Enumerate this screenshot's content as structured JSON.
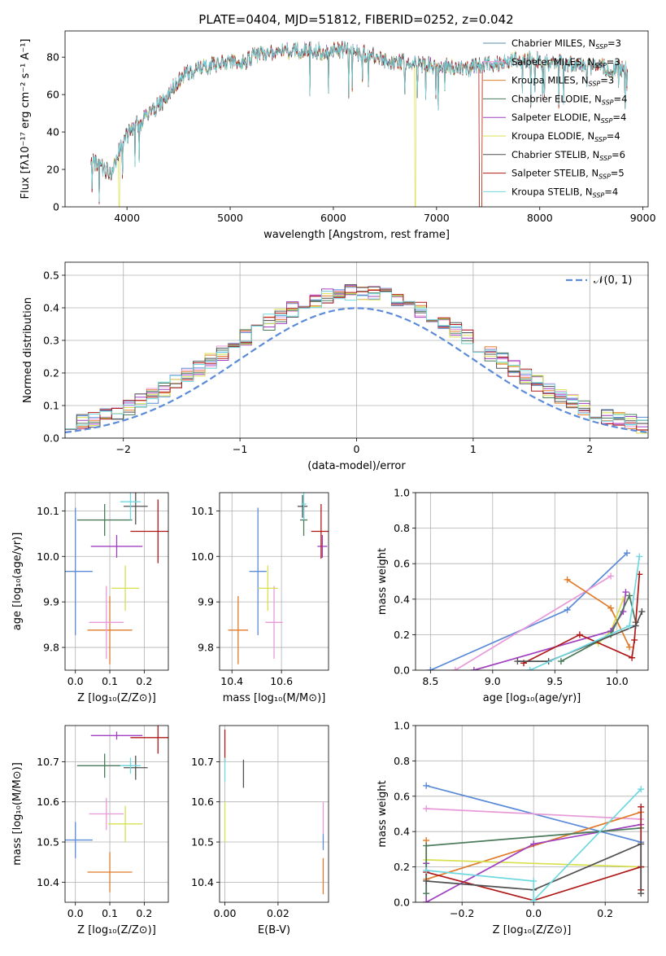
{
  "title": "PLATE=0404, MJD=51812, FIBERID=0252, z=0.042",
  "colors": {
    "Chabrier MILES": "#5a8fa6",
    "Salpeter MILES": "#e89ad8",
    "Kroupa MILES": "#e07b2a",
    "Chabrier ELODIE": "#4a7a5a",
    "Salpeter ELODIE": "#a040c0",
    "Kroupa ELODIE": "#d8e050",
    "Chabrier STELIB": "#505050",
    "Salpeter STELIB": "#b01818",
    "Kroupa STELIB": "#70d8e0",
    "normal": "#5b8bd9"
  },
  "chart_data": [
    {
      "type": "line",
      "panel": "spectrum",
      "xlabel": "wavelength [Angstrom, rest frame]",
      "ylabel": "Flux [fλ10⁻¹⁷ erg cm⁻² s⁻¹ A⁻¹]",
      "xlim": [
        3400,
        9050
      ],
      "ylim": [
        0,
        94
      ],
      "xticks": [
        4000,
        5000,
        6000,
        7000,
        8000,
        9000
      ],
      "yticks": [
        0,
        20,
        40,
        60,
        80
      ],
      "grid": false,
      "legend_position": "upper-right",
      "legend": [
        {
          "name": "Chabrier MILES",
          "label": "Chabrier MILES, N",
          "nssp": "=3"
        },
        {
          "name": "Salpeter MILES",
          "label": "Salpeter MILES, N",
          "nssp": "=3"
        },
        {
          "name": "Kroupa MILES",
          "label": "Kroupa MILES, N",
          "nssp": "=3"
        },
        {
          "name": "Chabrier ELODIE",
          "label": "Chabrier ELODIE, N",
          "nssp": "=4"
        },
        {
          "name": "Salpeter ELODIE",
          "label": "Salpeter ELODIE, N",
          "nssp": "=4"
        },
        {
          "name": "Kroupa ELODIE",
          "label": "Kroupa ELODIE, N",
          "nssp": "=4"
        },
        {
          "name": "Chabrier STELIB",
          "label": "Chabrier STELIB, N",
          "nssp": "=6"
        },
        {
          "name": "Salpeter STELIB",
          "label": "Salpeter STELIB, N",
          "nssp": "=5"
        },
        {
          "name": "Kroupa STELIB",
          "label": "Kroupa STELIB, N",
          "nssp": "=4"
        }
      ],
      "continuum_x": [
        3650,
        3750,
        3850,
        3950,
        4050,
        4150,
        4250,
        4350,
        4500,
        4650,
        4800,
        4950,
        5100,
        5300,
        5500,
        5700,
        5900,
        6100,
        6300,
        6500,
        6700,
        6900,
        7100,
        7300,
        7500,
        7700,
        7900,
        8100,
        8300,
        8500,
        8700,
        8850
      ],
      "continuum_y": [
        25,
        21,
        18,
        34,
        42,
        46,
        52,
        56,
        68,
        73,
        75,
        78,
        77,
        82,
        83,
        84,
        83,
        84,
        82,
        78,
        77,
        76,
        75,
        74,
        76,
        78,
        79,
        77,
        76,
        75,
        74,
        74
      ],
      "dips": [
        {
          "series": "Kroupa MILES",
          "x0": 7410,
          "x1": 7440,
          "y": 0
        },
        {
          "series": "Salpeter STELIB",
          "x0": 7410,
          "x1": 7440,
          "y": 0
        },
        {
          "series": "Kroupa ELODIE",
          "x0": 6790,
          "x1": 6800,
          "y": 0
        },
        {
          "series": "Kroupa ELODIE",
          "x0": 3920,
          "x1": 3930,
          "y": 0
        }
      ]
    },
    {
      "type": "step",
      "panel": "residual_histogram",
      "xlabel": "(data-model)/error",
      "ylabel": "Normed distribution",
      "xlim": [
        -2.5,
        2.5
      ],
      "ylim": [
        0,
        0.54
      ],
      "xticks": [
        -2,
        -1,
        0,
        1,
        2
      ],
      "yticks": [
        0.0,
        0.1,
        0.2,
        0.3,
        0.4,
        0.5
      ],
      "grid": true,
      "legend": "𝒩(0, 1)",
      "legend_position": "upper-right",
      "bin_width": 0.1,
      "normal_mu": 0,
      "normal_sigma": 1
    },
    {
      "type": "errorbar",
      "panel": "age_vs_Z",
      "xlabel": "Z [log₁₀(Z/Z⊙)]",
      "ylabel": "age  [log₁₀(age/yr)]",
      "xlim": [
        -0.03,
        0.27
      ],
      "ylim": [
        9.75,
        10.14
      ],
      "xticks": [
        0.0,
        0.1,
        0.2
      ],
      "yticks": [
        9.8,
        9.9,
        10.0,
        10.1
      ],
      "grid": true,
      "points": [
        {
          "name": "normal",
          "x": 0.0,
          "y": 9.967,
          "xerr": 0.05,
          "yerr": 0.14
        },
        {
          "name": "Kroupa MILES",
          "x": 0.1,
          "y": 9.838,
          "xerr": 0.065,
          "yerr": 0.075
        },
        {
          "name": "Salpeter MILES",
          "x": 0.09,
          "y": 9.855,
          "xerr": 0.05,
          "yerr": 0.08
        },
        {
          "name": "Kroupa ELODIE",
          "x": 0.145,
          "y": 9.93,
          "xerr": 0.04,
          "yerr": 0.05
        },
        {
          "name": "Salpeter ELODIE",
          "x": 0.12,
          "y": 10.022,
          "xerr": 0.075,
          "yerr": 0.025
        },
        {
          "name": "Chabrier ELODIE",
          "x": 0.085,
          "y": 10.08,
          "xerr": 0.08,
          "yerr": 0.035
        },
        {
          "name": "Salpeter STELIB",
          "x": 0.24,
          "y": 10.055,
          "xerr": 0.08,
          "yerr": 0.07
        },
        {
          "name": "Chabrier STELIB",
          "x": 0.175,
          "y": 10.11,
          "xerr": 0.035,
          "yerr": 0.04
        },
        {
          "name": "Kroupa STELIB",
          "x": 0.16,
          "y": 10.12,
          "xerr": 0.03,
          "yerr": 0.04
        }
      ]
    },
    {
      "type": "errorbar",
      "panel": "age_vs_mass",
      "xlabel": "mass [log₁₀(M/M⊙)]",
      "ylabel": "",
      "xlim": [
        10.35,
        10.79
      ],
      "ylim": [
        9.75,
        10.14
      ],
      "xticks": [
        10.4,
        10.6
      ],
      "yticks": [
        9.8,
        9.9,
        10.0,
        10.1
      ],
      "grid": true,
      "points": [
        {
          "name": "normal",
          "x": 10.505,
          "y": 9.967,
          "xerr": 0.035,
          "yerr": 0.14
        },
        {
          "name": "Kroupa MILES",
          "x": 10.425,
          "y": 9.838,
          "xerr": 0.04,
          "yerr": 0.075
        },
        {
          "name": "Salpeter MILES",
          "x": 10.57,
          "y": 9.855,
          "xerr": 0.035,
          "yerr": 0.08
        },
        {
          "name": "Kroupa ELODIE",
          "x": 10.545,
          "y": 9.93,
          "xerr": 0.04,
          "yerr": 0.05
        },
        {
          "name": "Salpeter ELODIE",
          "x": 10.765,
          "y": 10.022,
          "xerr": 0.02,
          "yerr": 0.025
        },
        {
          "name": "Chabrier ELODIE",
          "x": 10.69,
          "y": 10.08,
          "xerr": 0.015,
          "yerr": 0.035
        },
        {
          "name": "Salpeter STELIB",
          "x": 10.76,
          "y": 10.055,
          "xerr": 0.04,
          "yerr": 0.06
        },
        {
          "name": "Chabrier STELIB",
          "x": 10.685,
          "y": 10.11,
          "xerr": 0.02,
          "yerr": 0.025
        },
        {
          "name": "Kroupa STELIB",
          "x": 10.69,
          "y": 10.115,
          "xerr": 0.01,
          "yerr": 0.035
        }
      ]
    },
    {
      "type": "line",
      "panel": "mass_weight_vs_age",
      "xlabel": "age  [log₁₀(age/yr)]",
      "ylabel": "mass weight",
      "xlim": [
        8.38,
        10.25
      ],
      "ylim": [
        0,
        1.0
      ],
      "xticks": [
        8.5,
        9.0,
        9.5,
        10.0
      ],
      "yticks": [
        0.0,
        0.2,
        0.4,
        0.6,
        0.8,
        1.0
      ],
      "grid": true,
      "series": [
        {
          "name": "normal",
          "x": [
            8.5,
            9.6,
            10.08
          ],
          "y": [
            0.0,
            0.34,
            0.66
          ]
        },
        {
          "name": "Salpeter MILES",
          "x": [
            8.7,
            9.95
          ],
          "y": [
            0.0,
            0.53
          ]
        },
        {
          "name": "Kroupa MILES",
          "x": [
            9.6,
            9.95,
            10.1
          ],
          "y": [
            0.51,
            0.35,
            0.13
          ]
        },
        {
          "name": "Kroupa ELODIE",
          "x": [
            9.85,
            9.95,
            10.05
          ],
          "y": [
            0.15,
            0.22,
            0.4
          ]
        },
        {
          "name": "Salpeter ELODIE",
          "x": [
            8.85,
            9.95,
            10.05,
            10.07
          ],
          "y": [
            0.0,
            0.22,
            0.33,
            0.44
          ]
        },
        {
          "name": "Chabrier ELODIE",
          "x": [
            9.55,
            9.95,
            10.1,
            10.15
          ],
          "y": [
            0.05,
            0.2,
            0.42,
            0.27
          ]
        },
        {
          "name": "Salpeter STELIB",
          "x": [
            9.25,
            9.7,
            10.12,
            10.14,
            10.18
          ],
          "y": [
            0.04,
            0.2,
            0.07,
            0.17,
            0.54
          ]
        },
        {
          "name": "Chabrier STELIB",
          "x": [
            9.2,
            9.45,
            10.15,
            10.2
          ],
          "y": [
            0.05,
            0.05,
            0.25,
            0.33
          ]
        },
        {
          "name": "Kroupa STELIB",
          "x": [
            9.3,
            10.1,
            10.18
          ],
          "y": [
            0.0,
            0.25,
            0.64
          ]
        }
      ]
    },
    {
      "type": "errorbar",
      "panel": "mass_vs_Z",
      "xlabel": "Z [log₁₀(Z/Z⊙)]",
      "ylabel": "mass [log₁₀(M/M⊙)]",
      "xlim": [
        -0.03,
        0.27
      ],
      "ylim": [
        10.35,
        10.79
      ],
      "xticks": [
        0.0,
        0.1,
        0.2
      ],
      "yticks": [
        10.4,
        10.5,
        10.6,
        10.7
      ],
      "grid": true,
      "points": [
        {
          "name": "normal",
          "x": 0.0,
          "y": 10.505,
          "xerr": 0.05,
          "yerr": 0.045
        },
        {
          "name": "Kroupa MILES",
          "x": 0.1,
          "y": 10.425,
          "xerr": 0.065,
          "yerr": 0.05
        },
        {
          "name": "Salpeter MILES",
          "x": 0.09,
          "y": 10.57,
          "xerr": 0.05,
          "yerr": 0.04
        },
        {
          "name": "Kroupa ELODIE",
          "x": 0.145,
          "y": 10.545,
          "xerr": 0.05,
          "yerr": 0.045
        },
        {
          "name": "Salpeter ELODIE",
          "x": 0.12,
          "y": 10.765,
          "xerr": 0.075,
          "yerr": 0.01
        },
        {
          "name": "Chabrier ELODIE",
          "x": 0.085,
          "y": 10.69,
          "xerr": 0.08,
          "yerr": 0.03
        },
        {
          "name": "Salpeter STELIB",
          "x": 0.24,
          "y": 10.76,
          "xerr": 0.08,
          "yerr": 0.04
        },
        {
          "name": "Chabrier STELIB",
          "x": 0.175,
          "y": 10.685,
          "xerr": 0.035,
          "yerr": 0.03
        },
        {
          "name": "Kroupa STELIB",
          "x": 0.16,
          "y": 10.69,
          "xerr": 0.03,
          "yerr": 0.02
        }
      ]
    },
    {
      "type": "errorbar",
      "panel": "mass_vs_EBV",
      "xlabel": "E(B-V)",
      "ylabel": "",
      "xlim": [
        -0.002,
        0.039
      ],
      "ylim": [
        10.35,
        10.79
      ],
      "xticks": [
        0.0,
        0.02
      ],
      "yticks": [
        10.4,
        10.5,
        10.6,
        10.7
      ],
      "grid": true,
      "points": [
        {
          "name": "Kroupa ELODIE",
          "x": 0.0,
          "y": 10.55,
          "xerr": 0,
          "yerr": 0.05
        },
        {
          "name": "Salpeter STELIB",
          "x": 0.0,
          "y": 10.74,
          "xerr": 0,
          "yerr": 0.04
        },
        {
          "name": "Kroupa STELIB",
          "x": 0.0,
          "y": 10.68,
          "xerr": 0,
          "yerr": 0.03
        },
        {
          "name": "Chabrier STELIB",
          "x": 0.007,
          "y": 10.67,
          "xerr": 0,
          "yerr": 0.035
        },
        {
          "name": "Salpeter MILES",
          "x": 0.037,
          "y": 10.56,
          "xerr": 0,
          "yerr": 0.04
        },
        {
          "name": "Kroupa MILES",
          "x": 0.037,
          "y": 10.415,
          "xerr": 0,
          "yerr": 0.045
        },
        {
          "name": "normal",
          "x": 0.037,
          "y": 10.5,
          "xerr": 0,
          "yerr": 0.02
        }
      ]
    },
    {
      "type": "line",
      "panel": "mass_weight_vs_Z",
      "xlabel": "Z [log₁₀(Z/Z⊙)]",
      "ylabel": "mass weight",
      "xlim": [
        -0.33,
        0.32
      ],
      "ylim": [
        0,
        1.0
      ],
      "xticks": [
        -0.2,
        0.0,
        0.2
      ],
      "yticks": [
        0.0,
        0.2,
        0.4,
        0.6,
        0.8,
        1.0
      ],
      "grid": true,
      "series": [
        {
          "name": "normal",
          "x": [
            -0.3,
            0.3
          ],
          "y": [
            0.66,
            0.34
          ]
        },
        {
          "name": "Salpeter MILES",
          "x": [
            -0.3,
            0.3
          ],
          "y": [
            0.53,
            0.47
          ]
        },
        {
          "name": "Kroupa MILES",
          "x": [
            -0.3,
            -0.3,
            0.3
          ],
          "y": [
            0.35,
            0.13,
            0.51
          ]
        },
        {
          "name": "Kroupa ELODIE",
          "x": [
            -0.3,
            0.3
          ],
          "y": [
            0.24,
            0.2
          ]
        },
        {
          "name": "Salpeter ELODIE",
          "x": [
            -0.3,
            -0.3,
            0.0,
            0.3
          ],
          "y": [
            0.22,
            0.0,
            0.33,
            0.44
          ]
        },
        {
          "name": "Chabrier ELODIE",
          "x": [
            -0.3,
            -0.3,
            0.3
          ],
          "y": [
            0.05,
            0.32,
            0.42
          ]
        },
        {
          "name": "Salpeter STELIB",
          "x": [
            -0.3,
            0.0,
            0.3,
            0.3,
            0.3,
            0.3
          ],
          "y": [
            0.17,
            0.01,
            0.2,
            0.54,
            0.07,
            0.2
          ]
        },
        {
          "name": "Chabrier STELIB",
          "x": [
            -0.3,
            0.0,
            0.3,
            0.3
          ],
          "y": [
            0.12,
            0.07,
            0.33,
            0.05
          ]
        },
        {
          "name": "Kroupa STELIB",
          "x": [
            -0.3,
            0.0,
            0.0,
            0.3
          ],
          "y": [
            0.18,
            0.12,
            0.01,
            0.64
          ]
        }
      ]
    }
  ]
}
